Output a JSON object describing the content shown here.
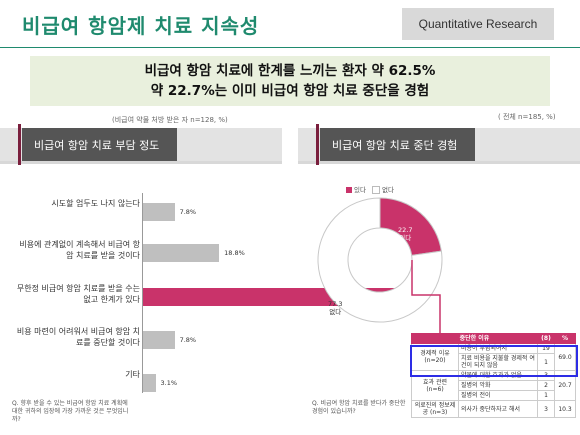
{
  "header": {
    "title": "비급여 항암제 치료 지속성",
    "tag": "Quantitative Research"
  },
  "headline": {
    "line1": "비급여 항암 치료에 한계를 느끼는 환자 약 62.5%",
    "line2": "약 22.7%는 이미 비급여 항암 치료 중단을 경험"
  },
  "notes": {
    "left": "(비급여 약물 처방 받은 자 n=128, %)",
    "right": "( 전체 n=185, %)"
  },
  "left_panel": {
    "title": "비급여 항암 치료 부담 정도",
    "question": "Q. 향후 받을 수 있는 비급여 항암 치료 계획에 대한 귀하의 입장에 가장 가까운 것은 무엇입니까?"
  },
  "right_panel": {
    "title": "비급여 항암 치료 중단 경험",
    "question": "Q. 비급여 항암 치료를 받다가 중단한 경험이 있습니까?"
  },
  "chart_data": [
    {
      "type": "bar",
      "orientation": "horizontal",
      "categories": [
        "시도할 엄두도 나지 않는다",
        "비용에 관계없이 계속해서 비급여 항암 치료를 받을 것이다",
        "무한정 비급여 항암 치료를 받을 수는 없고 한계가 있다",
        "비용 마련이 어려워서 비급여 항암 치료를 중단할 것이다",
        "기타"
      ],
      "values": [
        7.8,
        18.8,
        62.5,
        7.8,
        3.1
      ],
      "value_labels": [
        "7.8%",
        "18.8%",
        "62.5%",
        "7.8%",
        "3.1%"
      ],
      "highlight_index": 2,
      "xlim": [
        0,
        100
      ]
    },
    {
      "type": "pie",
      "donut": true,
      "categories": [
        "있다",
        "없다"
      ],
      "values": [
        22.7,
        77.3
      ],
      "colors": [
        "#c9336a",
        "#ffffff"
      ]
    },
    {
      "type": "table",
      "columns": [
        "중단한 이유",
        "",
        "(8)",
        "%"
      ],
      "rows": [
        {
          "group": "경제적 이유 (n=20)",
          "reason": "비용이 부담되어서",
          "n": "19",
          "pct": "69.0"
        },
        {
          "group": "",
          "reason": "치료 비용을 지불할 경제적 여건이 되지 않음",
          "n": "1",
          "pct": ""
        },
        {
          "group": "효과 관련 (n=6)",
          "reason": "약물에 대한 효과가 없음",
          "n": "3",
          "pct": "20.7"
        },
        {
          "group": "",
          "reason": "질병의 악화",
          "n": "2",
          "pct": ""
        },
        {
          "group": "",
          "reason": "질병의 전이",
          "n": "1",
          "pct": ""
        },
        {
          "group": "의료진의 정보제공 (n=3)",
          "reason": "의사가 중단하자고 해서",
          "n": "3",
          "pct": "10.3"
        }
      ]
    }
  ],
  "colors": {
    "brand": "#1f8a6e",
    "highlight": "#c9336a",
    "bar": "#bfbfbf",
    "headline_bg": "#e9f0dd"
  }
}
